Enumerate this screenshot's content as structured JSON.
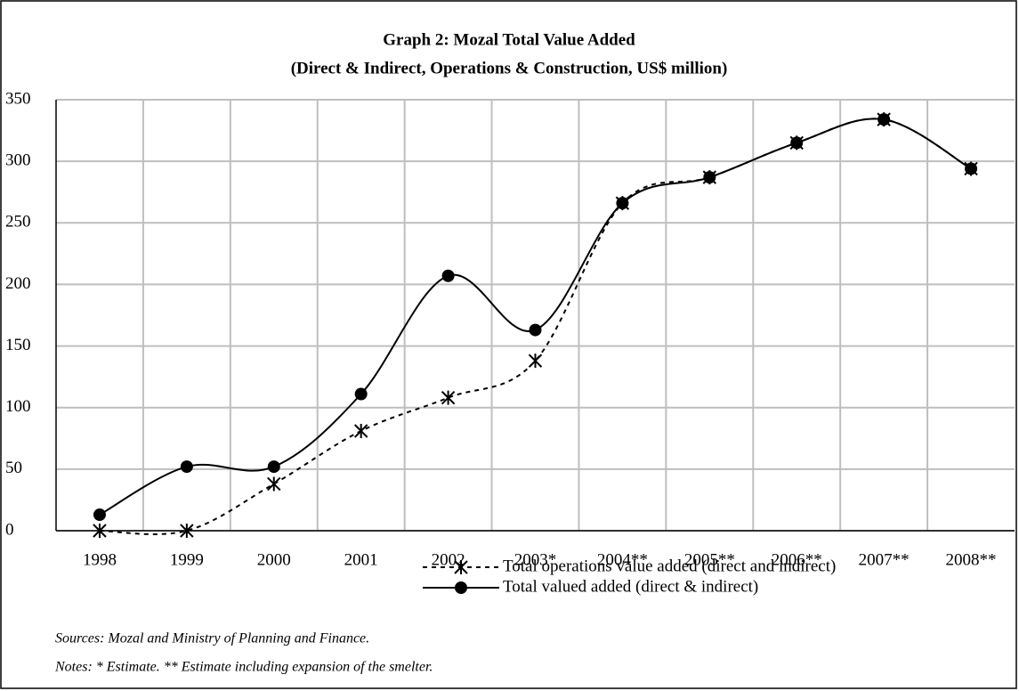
{
  "chart_data": {
    "type": "line",
    "title": "Graph 2: Mozal Total Value Added",
    "subtitle": "(Direct & Indirect, Operations & Construction, US$ million)",
    "categories": [
      "1998",
      "1999",
      "2000",
      "2001",
      "2002",
      "2003*",
      "2004**",
      "2005**",
      "2006**",
      "2007**",
      "2008**"
    ],
    "series": [
      {
        "name": "Total operations value added (direct and indirect)",
        "color": "#000000",
        "dash": true,
        "marker": "star",
        "values": [
          0,
          0,
          38,
          81,
          108,
          138,
          266,
          287,
          315,
          334,
          294
        ]
      },
      {
        "name": "Total valued added (direct & indirect)",
        "color": "#000000",
        "dash": false,
        "marker": "circle",
        "values": [
          13,
          52,
          52,
          111,
          207,
          163,
          266,
          287,
          315,
          334,
          294
        ]
      }
    ],
    "ylim": [
      0,
      350
    ],
    "yticks": [
      0,
      50,
      100,
      150,
      200,
      250,
      300,
      350
    ],
    "grid": true,
    "sources": "Sources: Mozal and Ministry of Planning and Finance.",
    "notes": "Notes: * Estimate. ** Estimate including expansion of the smelter."
  }
}
